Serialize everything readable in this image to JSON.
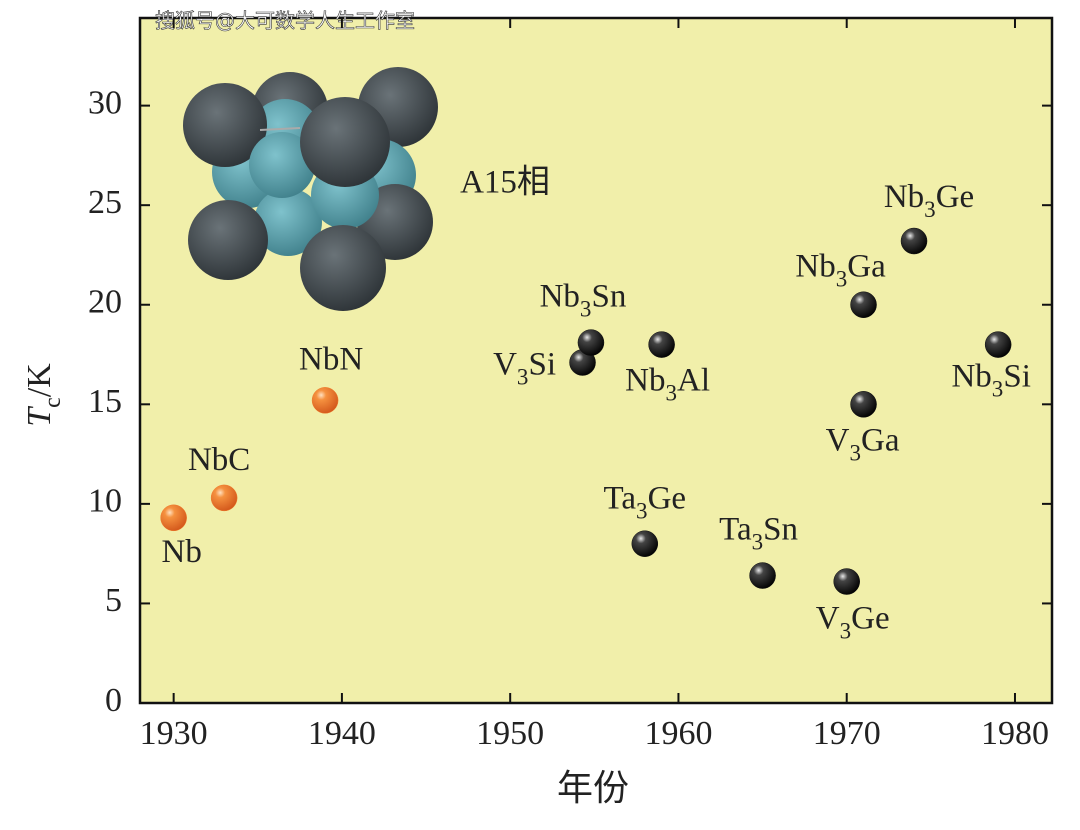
{
  "watermark": "搜狐号@大可数学人生工作室",
  "chart_data": {
    "type": "scatter",
    "xlabel": "年份",
    "ylabel": "Tc/K",
    "annotation": "A15相",
    "xlim": [
      1928,
      1982.2
    ],
    "ylim": [
      0,
      34.4
    ],
    "xticks": [
      1930,
      1940,
      1950,
      1960,
      1970,
      1980
    ],
    "yticks": [
      0,
      5,
      10,
      15,
      20,
      25,
      30
    ],
    "series": [
      {
        "color": "#f07a2a",
        "x": [
          1930,
          1933,
          1939
        ],
        "y": [
          9.3,
          10.3,
          15.2
        ],
        "labels": [
          "Nb",
          "NbC",
          "NbN"
        ]
      },
      {
        "color": "#111111",
        "x": [
          1954.3,
          1954.8,
          1959,
          1958,
          1965,
          1970,
          1971,
          1971,
          1974,
          1979
        ],
        "y": [
          17.1,
          18.1,
          18.0,
          8.0,
          6.4,
          6.1,
          15.0,
          20.0,
          23.2,
          18.0
        ],
        "labels": [
          "V3Si",
          "Nb3Sn",
          "Nb3Al",
          "Ta3Ge",
          "Ta3Sn",
          "V3Ge",
          "V3Ga",
          "Nb3Ga",
          "Nb3Ge",
          "Nb3Si"
        ]
      }
    ]
  }
}
